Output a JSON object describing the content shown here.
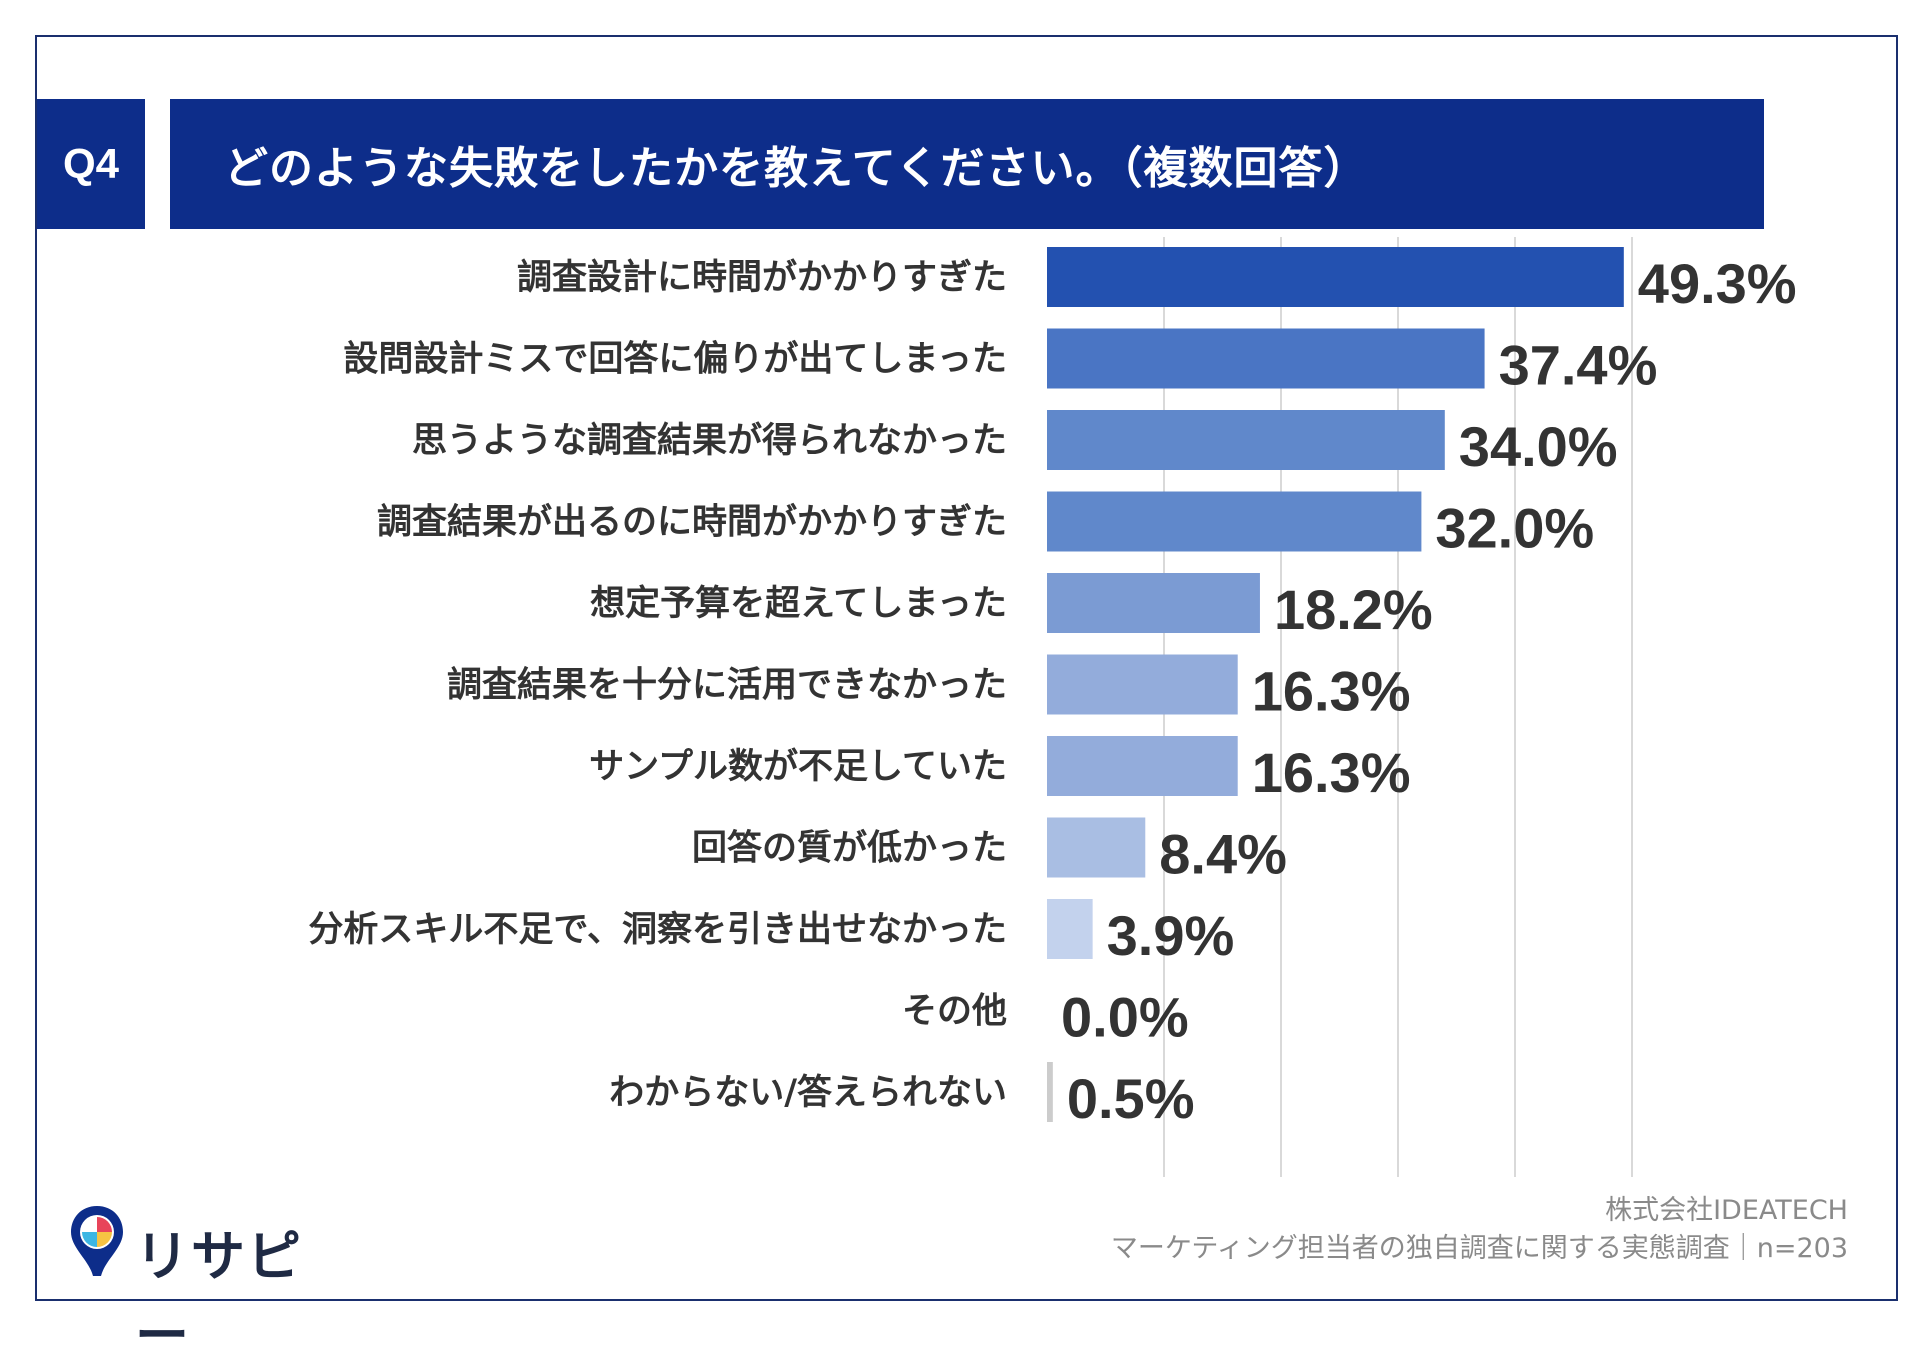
{
  "header": {
    "q_label": "Q4",
    "title": "どのような失敗をしたかを教えてください。（複数回答）"
  },
  "colors": {
    "header_bg": "#0d2d8a",
    "frame": "#1a2f6e",
    "bar_scale": [
      "#2351b0",
      "#4a75c4",
      "#6088cb",
      "#7b9bd3",
      "#93acdb",
      "#a9bee3",
      "#c3d2ed",
      "#cccccc"
    ]
  },
  "chart_data": {
    "type": "bar",
    "orientation": "horizontal",
    "title": "どのような失敗をしたかを教えてください。（複数回答）",
    "categories": [
      "調査設計に時間がかかりすぎた",
      "設問設計ミスで回答に偏りが出てしまった",
      "思うような調査結果が得られなかった",
      "調査結果が出るのに時間がかかりすぎた",
      "想定予算を超えてしまった",
      "調査結果を十分に活用できなかった",
      "サンプル数が不足していた",
      "回答の質が低かった",
      "分析スキル不足で、洞察を引き出せなかった",
      "その他",
      "わからない/答えられない"
    ],
    "values": [
      49.3,
      37.4,
      34.0,
      32.0,
      18.2,
      16.3,
      16.3,
      8.4,
      3.9,
      0.0,
      0.5
    ],
    "value_labels": [
      "49.3%",
      "37.4%",
      "34.0%",
      "32.0%",
      "18.2%",
      "16.3%",
      "16.3%",
      "8.4%",
      "3.9%",
      "0.0%",
      "0.5%"
    ],
    "xlim": [
      0,
      50
    ],
    "grid": true,
    "legend": "none"
  },
  "logo": {
    "name": "リサピー",
    "icon": "pin-logo-icon"
  },
  "footer": {
    "line1": "株式会社IDEATECH",
    "line2": "マーケティング担当者の独自調査に関する実態調査｜n=203"
  }
}
